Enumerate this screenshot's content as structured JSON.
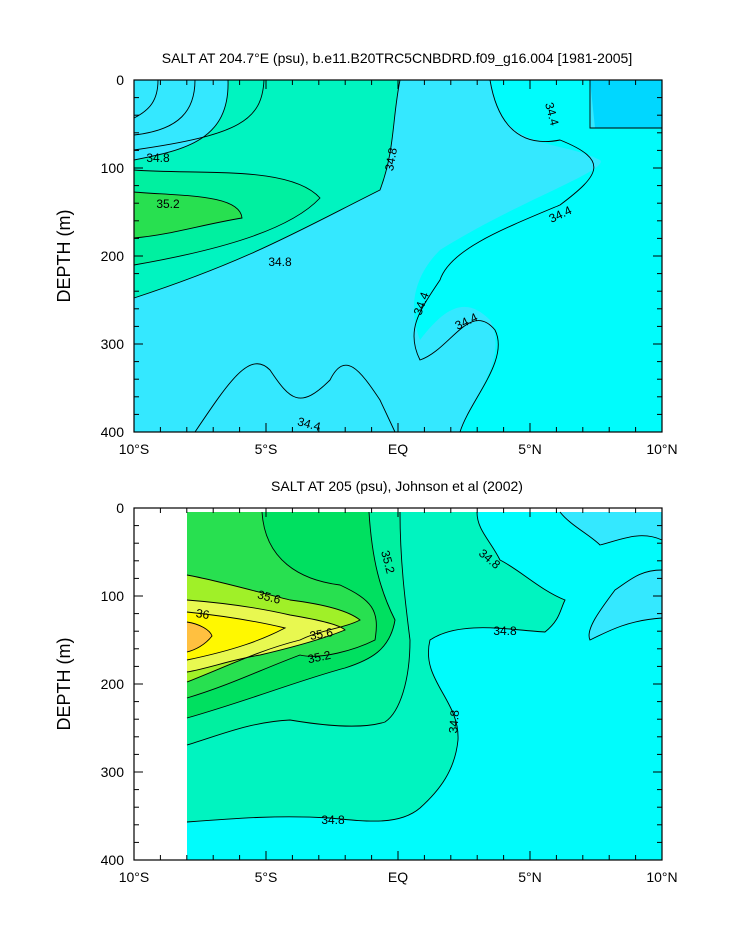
{
  "chart_data": [
    {
      "type": "contour",
      "title": "SALT AT 204.7°E (psu), b.e11.B20TRC5CNBDRD.f09_g16.004 [1981-2005]",
      "ylabel": "DEPTH (m)",
      "xlabel": "",
      "x_ticks": [
        "10°S",
        "5°S",
        "EQ",
        "5°N",
        "10°N"
      ],
      "x_tick_values": [
        -10,
        -5,
        0,
        5,
        10
      ],
      "y_ticks": [
        "0",
        "100",
        "200",
        "300",
        "400"
      ],
      "y_tick_values": [
        0,
        100,
        200,
        300,
        400
      ],
      "xlim": [
        -10,
        10
      ],
      "ylim": [
        400,
        0
      ],
      "contour_interval": 0.2,
      "fill_colors": {
        "34.2-34.4": "#00d7ff",
        "34.4-34.6": "#00fcfc",
        "34.6-34.8": "#34e8ff",
        "34.8-35.0": "#00f4c0",
        "35.0-35.2": "#00f0a0",
        "35.2-35.4": "#28e050"
      },
      "contour_labels": [
        {
          "text": "34.8",
          "lon": -9.0,
          "depth": 92
        },
        {
          "text": "35.2",
          "lon": -8.7,
          "depth": 146
        },
        {
          "text": "34.8",
          "lon": -4.2,
          "depth": 205
        },
        {
          "text": "34.8",
          "lon": -0.6,
          "depth": 94
        },
        {
          "text": "34.4",
          "lon": 5.6,
          "depth": 38
        },
        {
          "text": "34.4",
          "lon": 6.5,
          "depth": 150
        },
        {
          "text": "34.4",
          "lon": 0.8,
          "depth": 280
        },
        {
          "text": "34.4",
          "lon": 2.7,
          "depth": 280
        },
        {
          "text": "34.4",
          "lon": -3.6,
          "depth": 390
        }
      ]
    },
    {
      "type": "contour",
      "title": "SALT AT 205 (psu), Johnson et al (2002)",
      "ylabel": "DEPTH (m)",
      "xlabel": "",
      "x_ticks": [
        "10°S",
        "5°S",
        "EQ",
        "5°N",
        "10°N"
      ],
      "x_tick_values": [
        -10,
        -5,
        0,
        5,
        10
      ],
      "y_ticks": [
        "0",
        "100",
        "200",
        "300",
        "400"
      ],
      "y_tick_values": [
        0,
        100,
        200,
        300,
        400
      ],
      "xlim": [
        -10,
        10
      ],
      "ylim": [
        400,
        0
      ],
      "data_lon_range": [
        -8,
        10
      ],
      "contour_interval": 0.2,
      "fill_colors": {
        "34.2-34.4": "#34e8ff",
        "34.4-34.6": "#00fcfc",
        "34.6-34.8": "#00f4c0",
        "34.8-35.0": "#00f0a0",
        "35.0-35.2": "#00e060",
        "35.2-35.4": "#28e050",
        "35.4-35.6": "#a0f028",
        "35.6-35.8": "#e8f850",
        "35.8-36.0": "#fff800",
        "36.0-36.2": "#ffc040"
      },
      "contour_labels": [
        {
          "text": "35.6",
          "lon": -5.1,
          "depth": 102
        },
        {
          "text": "36",
          "lon": -7.6,
          "depth": 124
        },
        {
          "text": "35.6",
          "lon": -3.5,
          "depth": 142
        },
        {
          "text": "35.2",
          "lon": -3.4,
          "depth": 168
        },
        {
          "text": "35.2",
          "lon": -0.7,
          "depth": 60
        },
        {
          "text": "34.8",
          "lon": 3.3,
          "depth": 68
        },
        {
          "text": "34.8",
          "lon": 3.9,
          "depth": 140
        },
        {
          "text": "34.8",
          "lon": 2.0,
          "depth": 240
        },
        {
          "text": "34.8",
          "lon": -2.6,
          "depth": 322
        }
      ]
    }
  ]
}
